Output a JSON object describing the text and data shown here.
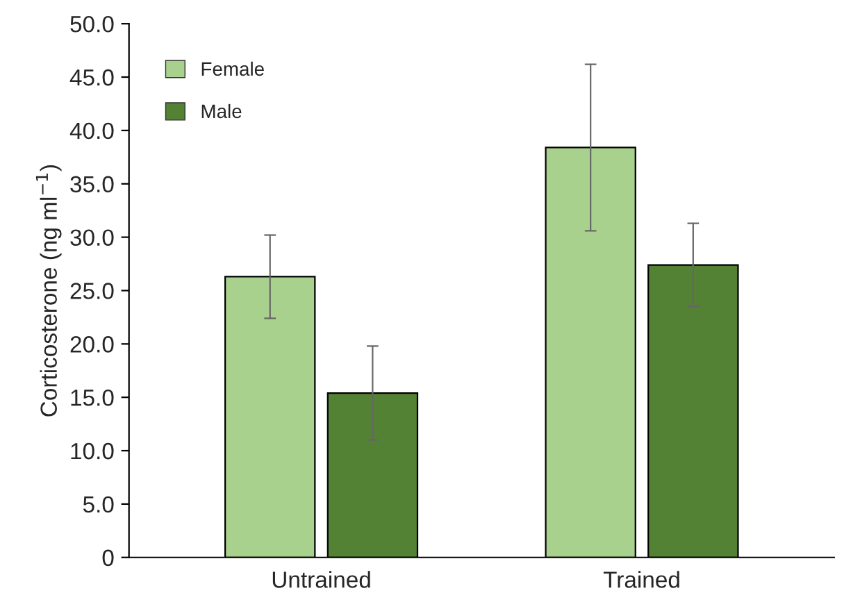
{
  "chart_data": {
    "type": "bar",
    "ylabel": "Corticosterone (ng ml$^{−1}$)",
    "categories": [
      "Untrained",
      "Trained"
    ],
    "series": [
      {
        "name": "Female",
        "color": "#a9d18e",
        "values": [
          26.3,
          38.4
        ],
        "errors": [
          3.9,
          7.8
        ]
      },
      {
        "name": "Male",
        "color": "#548235",
        "values": [
          15.4,
          27.4
        ],
        "errors": [
          4.4,
          3.9
        ]
      }
    ],
    "ylim": [
      0,
      50
    ],
    "yticks": [
      0,
      {
        "value": 5,
        "label": "5.0"
      },
      {
        "value": 10,
        "label": "10.0"
      },
      {
        "value": 15,
        "label": "15.0"
      },
      {
        "value": 20,
        "label": "20.0"
      },
      {
        "value": 25,
        "label": "25.0"
      },
      {
        "value": 30,
        "label": "30.0"
      },
      {
        "value": 35,
        "label": "35.0"
      },
      {
        "value": 40,
        "label": "40.0"
      },
      {
        "value": 45,
        "label": "45.0"
      },
      {
        "value": 50,
        "label": "50.0"
      }
    ],
    "legend": "top left"
  }
}
